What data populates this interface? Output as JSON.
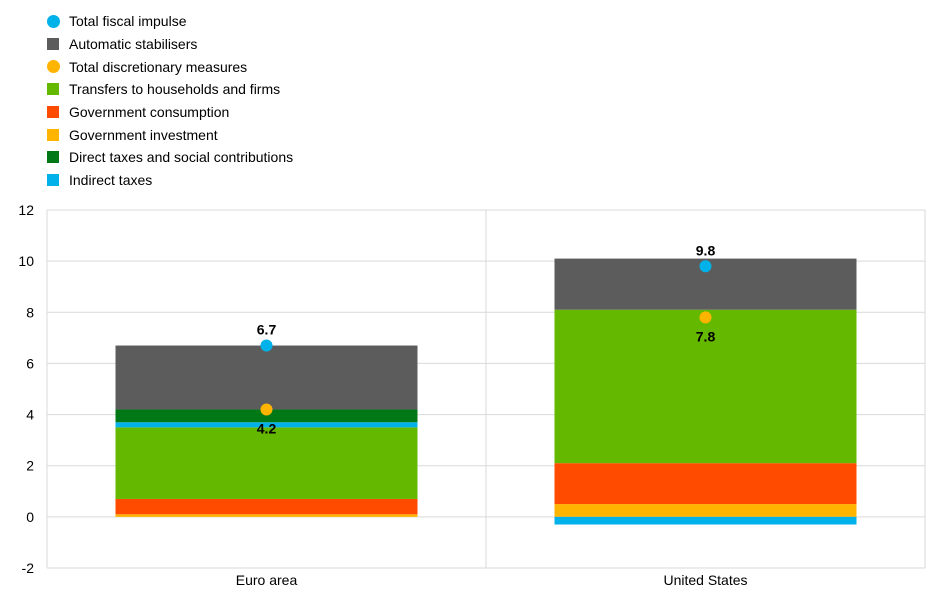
{
  "chart_data": {
    "type": "bar",
    "stacked": true,
    "categories": [
      "Euro area",
      "United States"
    ],
    "ylim": [
      -2,
      12
    ],
    "yticks": [
      -2,
      0,
      2,
      4,
      6,
      8,
      10,
      12
    ],
    "grid": true,
    "legend_position": "top-left",
    "series": [
      {
        "name": "Government investment",
        "color": "#FFB400",
        "values": [
          0.1,
          0.5
        ]
      },
      {
        "name": "Government consumption",
        "color": "#FF4B00",
        "values": [
          0.6,
          1.6
        ]
      },
      {
        "name": "Transfers to households and firms",
        "color": "#65B800",
        "values": [
          2.8,
          6.0
        ]
      },
      {
        "name": "Indirect taxes",
        "color": "#00B1EA",
        "values": [
          0.2,
          -0.3
        ]
      },
      {
        "name": "Direct taxes and social contributions",
        "color": "#007816",
        "values": [
          0.5,
          0.0
        ]
      },
      {
        "name": "Automatic stabilisers",
        "color": "#5C5C5C",
        "values": [
          2.5,
          2.0
        ]
      }
    ],
    "markers": [
      {
        "name": "Total fiscal impulse",
        "color": "#00B1EA",
        "values": [
          6.7,
          9.8
        ],
        "labels": [
          "6.7",
          "9.8"
        ],
        "label_pos": [
          "above",
          "above"
        ]
      },
      {
        "name": "Total discretionary measures",
        "color": "#FFB400",
        "values": [
          4.2,
          7.8
        ],
        "labels": [
          "4.2",
          "7.8"
        ],
        "label_pos": [
          "below",
          "below"
        ]
      }
    ],
    "legend": [
      {
        "label": "Total fiscal impulse",
        "color": "#00B1EA",
        "shape": "circle"
      },
      {
        "label": "Automatic stabilisers",
        "color": "#5C5C5C",
        "shape": "square"
      },
      {
        "label": "Total discretionary measures",
        "color": "#FFB400",
        "shape": "circle"
      },
      {
        "label": "Transfers to households and firms",
        "color": "#65B800",
        "shape": "square"
      },
      {
        "label": "Government consumption",
        "color": "#FF4B00",
        "shape": "square"
      },
      {
        "label": "Government investment",
        "color": "#FFB400",
        "shape": "square"
      },
      {
        "label": "Direct taxes and social contributions",
        "color": "#007816",
        "shape": "square"
      },
      {
        "label": "Indirect taxes",
        "color": "#00B1EA",
        "shape": "square"
      }
    ]
  }
}
